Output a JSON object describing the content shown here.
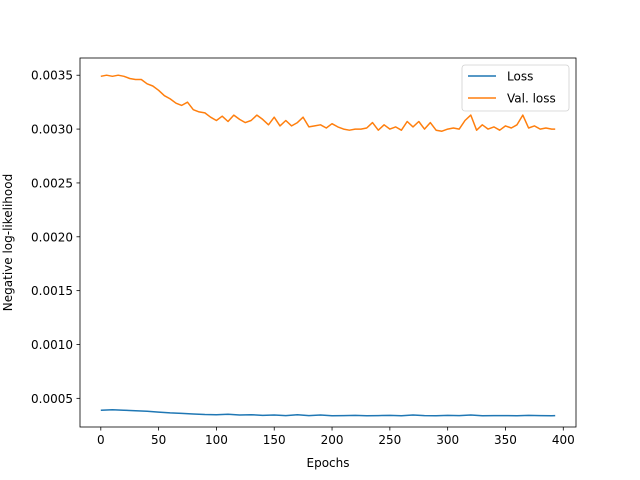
{
  "chart_data": {
    "type": "line",
    "xlabel": "Epochs",
    "ylabel": "Negative log-likelihood",
    "xlim": [
      -18,
      411
    ],
    "ylim": [
      0.000234,
      0.00366
    ],
    "xticks": [
      0,
      50,
      100,
      150,
      200,
      250,
      300,
      350,
      400
    ],
    "xtick_labels": [
      "0",
      "50",
      "100",
      "150",
      "200",
      "250",
      "300",
      "350",
      "400"
    ],
    "yticks": [
      0.0005,
      0.001,
      0.0015,
      0.002,
      0.0025,
      0.003,
      0.0035
    ],
    "ytick_labels": [
      "0.0005",
      "0.0010",
      "0.0015",
      "0.0020",
      "0.0025",
      "0.0030",
      "0.0035"
    ],
    "grid": false,
    "legend_position": "top-right",
    "series": [
      {
        "name": "Loss",
        "color": "#1f77b4",
        "x": [
          0,
          10,
          20,
          30,
          40,
          50,
          60,
          70,
          80,
          90,
          100,
          110,
          120,
          130,
          140,
          150,
          160,
          170,
          180,
          190,
          200,
          210,
          220,
          230,
          240,
          250,
          260,
          270,
          280,
          290,
          300,
          310,
          320,
          330,
          340,
          350,
          360,
          370,
          380,
          390,
          393
        ],
        "y": [
          0.00039,
          0.000395,
          0.00039,
          0.000385,
          0.00038,
          0.000372,
          0.000365,
          0.00036,
          0.000355,
          0.00035,
          0.000348,
          0.000352,
          0.000345,
          0.000348,
          0.000342,
          0.000345,
          0.00034,
          0.000348,
          0.00034,
          0.000345,
          0.000338,
          0.00034,
          0.000342,
          0.000338,
          0.00034,
          0.000342,
          0.000338,
          0.000345,
          0.00034,
          0.000338,
          0.000342,
          0.00034,
          0.000345,
          0.000338,
          0.00034,
          0.00034,
          0.000338,
          0.000342,
          0.00034,
          0.000338,
          0.00034
        ]
      },
      {
        "name": "Val. loss",
        "color": "#ff7f0e",
        "x": [
          0,
          5,
          10,
          15,
          20,
          25,
          30,
          35,
          40,
          45,
          50,
          55,
          60,
          65,
          70,
          75,
          80,
          85,
          90,
          95,
          100,
          105,
          110,
          115,
          120,
          125,
          130,
          135,
          140,
          145,
          150,
          155,
          160,
          165,
          170,
          175,
          180,
          185,
          190,
          195,
          200,
          205,
          210,
          215,
          220,
          225,
          230,
          235,
          240,
          245,
          250,
          255,
          260,
          265,
          270,
          275,
          280,
          285,
          290,
          295,
          300,
          305,
          310,
          315,
          320,
          325,
          330,
          335,
          340,
          345,
          350,
          355,
          360,
          365,
          370,
          375,
          380,
          385,
          390,
          393
        ],
        "y": [
          0.00349,
          0.0035,
          0.00349,
          0.0035,
          0.00349,
          0.00347,
          0.00346,
          0.00346,
          0.00342,
          0.0034,
          0.00336,
          0.00331,
          0.00328,
          0.00324,
          0.00322,
          0.00325,
          0.00318,
          0.00316,
          0.00315,
          0.00311,
          0.00308,
          0.00312,
          0.00307,
          0.00313,
          0.00309,
          0.00306,
          0.00308,
          0.00313,
          0.00309,
          0.00304,
          0.00311,
          0.00303,
          0.00308,
          0.00303,
          0.00306,
          0.00311,
          0.00302,
          0.00303,
          0.00304,
          0.00301,
          0.00305,
          0.00302,
          0.003,
          0.00299,
          0.003,
          0.003,
          0.00301,
          0.00306,
          0.00299,
          0.00304,
          0.003,
          0.00302,
          0.00299,
          0.00307,
          0.00302,
          0.00307,
          0.003,
          0.00306,
          0.00299,
          0.00298,
          0.003,
          0.00301,
          0.003,
          0.00308,
          0.00313,
          0.00299,
          0.00304,
          0.003,
          0.00302,
          0.00299,
          0.00303,
          0.00301,
          0.00304,
          0.00313,
          0.00301,
          0.00303,
          0.003,
          0.00301,
          0.003,
          0.003
        ]
      }
    ]
  }
}
